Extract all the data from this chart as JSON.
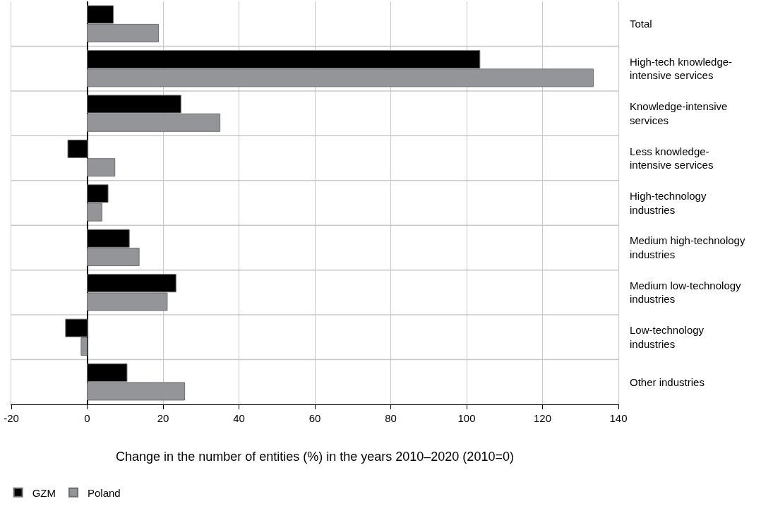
{
  "chart_data": {
    "type": "bar",
    "orientation": "horizontal",
    "xlabel": "Change in the number of entities (%) in the years 2010–2020 (2010=0)",
    "categories": [
      "Total",
      "High-tech knowledge-intensive services",
      "Knowledge-intensive services",
      "Less knowledge-intensive services",
      "High-technology industries",
      "Medium high-technology industries",
      "Medium low-technology industries",
      "Low-technology industries",
      "Other industries"
    ],
    "series": [
      {
        "name": "GZM",
        "color": "#000000",
        "values": [
          6.9,
          103.5,
          24.7,
          -5.1,
          5.5,
          11.1,
          23.4,
          -5.7,
          10.5
        ]
      },
      {
        "name": "Poland",
        "color": "#939598",
        "values": [
          18.8,
          133.4,
          35.0,
          7.3,
          3.9,
          13.7,
          21.1,
          -1.6,
          25.7
        ]
      }
    ],
    "xlim": [
      -20,
      140
    ],
    "xticks": [
      -20,
      0,
      20,
      40,
      60,
      80,
      100,
      120,
      140
    ],
    "grid": true,
    "legend": "bottom left"
  }
}
